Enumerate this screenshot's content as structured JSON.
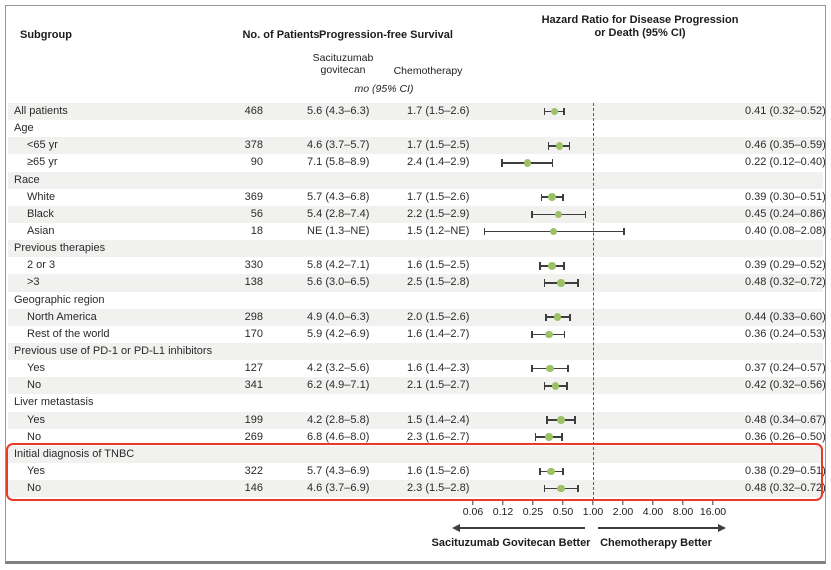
{
  "header": {
    "subgroup": "Subgroup",
    "patients": "No. of Patients",
    "pfs": "Progression-free Survival",
    "hr_line1": "Hazard Ratio for Disease Progression",
    "hr_line2": "or Death (95% CI)",
    "col_sg_line1": "Sacituzumab",
    "col_sg_line2": "govitecan",
    "col_chemo": "Chemotherapy",
    "units": "mo (95% CI)"
  },
  "highlight": {
    "label": "Initial diagnosis of TNBC",
    "color": "#e8392b"
  },
  "colors": {
    "marker_green": "#9cc166",
    "bar_dark": "#3e3e3e",
    "stripe_gray": "#f1f1f0",
    "highlight_red": "#e8392b"
  },
  "chart_data": {
    "type": "scatter",
    "subtype": "forest-plot",
    "title": "Hazard Ratio for Disease Progression or Death (95% CI)",
    "x_scale": "log2",
    "reference_line": 1.0,
    "xlim": [
      0.06,
      16.0
    ],
    "grid": false,
    "ticks": [
      {
        "label": "0.06",
        "value": 0.0625
      },
      {
        "label": "0.12",
        "value": 0.125
      },
      {
        "label": "0.25",
        "value": 0.25
      },
      {
        "label": "0.50",
        "value": 0.5
      },
      {
        "label": "1.00",
        "value": 1.0
      },
      {
        "label": "2.00",
        "value": 2.0
      },
      {
        "label": "4.00",
        "value": 4.0
      },
      {
        "label": "8.00",
        "value": 8.0
      },
      {
        "label": "16.00",
        "value": 16.0
      }
    ],
    "left_direction_label": "Sacituzumab Govitecan Better",
    "right_direction_label": "Chemotherapy Better",
    "rows": [
      {
        "label": "All patients",
        "indent": false,
        "group": false,
        "n": "468",
        "sg": "5.6 (4.3–6.3)",
        "chemo": "1.7 (1.5–2.6)",
        "hr": 0.41,
        "lo": 0.32,
        "hi": 0.52,
        "hr_text": "0.41 (0.32–0.52)"
      },
      {
        "label": "Age",
        "indent": false,
        "group": true
      },
      {
        "label": "<65 yr",
        "indent": true,
        "group": false,
        "n": "378",
        "sg": "4.6 (3.7–5.7)",
        "chemo": "1.7 (1.5–2.5)",
        "hr": 0.46,
        "lo": 0.35,
        "hi": 0.59,
        "hr_text": "0.46 (0.35–0.59)"
      },
      {
        "label": "≥65 yr",
        "indent": true,
        "group": false,
        "n": "90",
        "sg": "7.1 (5.8–8.9)",
        "chemo": "2.4 (1.4–2.9)",
        "hr": 0.22,
        "lo": 0.12,
        "hi": 0.4,
        "hr_text": "0.22 (0.12–0.40)"
      },
      {
        "label": "Race",
        "indent": false,
        "group": true
      },
      {
        "label": "White",
        "indent": true,
        "group": false,
        "n": "369",
        "sg": "5.7 (4.3–6.8)",
        "chemo": "1.7 (1.5–2.6)",
        "hr": 0.39,
        "lo": 0.3,
        "hi": 0.51,
        "hr_text": "0.39 (0.30–0.51)"
      },
      {
        "label": "Black",
        "indent": true,
        "group": false,
        "n": "56",
        "sg": "5.4 (2.8–7.4)",
        "chemo": "2.2 (1.5–2.9)",
        "hr": 0.45,
        "lo": 0.24,
        "hi": 0.86,
        "hr_text": "0.45 (0.24–0.86)"
      },
      {
        "label": "Asian",
        "indent": true,
        "group": false,
        "n": "18",
        "sg": "NE (1.3–NE)",
        "chemo": "1.5 (1.2–NE)",
        "hr": 0.4,
        "lo": 0.08,
        "hi": 2.08,
        "hr_text": "0.40 (0.08–2.08)"
      },
      {
        "label": "Previous therapies",
        "indent": false,
        "group": true
      },
      {
        "label": "2 or 3",
        "indent": true,
        "group": false,
        "n": "330",
        "sg": "5.8 (4.2–7.1)",
        "chemo": "1.6 (1.5–2.5)",
        "hr": 0.39,
        "lo": 0.29,
        "hi": 0.52,
        "hr_text": "0.39 (0.29–0.52)"
      },
      {
        "label": ">3",
        "indent": true,
        "group": false,
        "n": "138",
        "sg": "5.6 (3.0–6.5)",
        "chemo": "2.5 (1.5–2.8)",
        "hr": 0.48,
        "lo": 0.32,
        "hi": 0.72,
        "hr_text": "0.48 (0.32–0.72)"
      },
      {
        "label": "Geographic region",
        "indent": false,
        "group": true
      },
      {
        "label": "North America",
        "indent": true,
        "group": false,
        "n": "298",
        "sg": "4.9 (4.0–6.3)",
        "chemo": "2.0 (1.5–2.6)",
        "hr": 0.44,
        "lo": 0.33,
        "hi": 0.6,
        "hr_text": "0.44 (0.33–0.60)"
      },
      {
        "label": "Rest of the world",
        "indent": true,
        "group": false,
        "n": "170",
        "sg": "5.9 (4.2–6.9)",
        "chemo": "1.6 (1.4–2.7)",
        "hr": 0.36,
        "lo": 0.24,
        "hi": 0.53,
        "hr_text": "0.36 (0.24–0.53)"
      },
      {
        "label": "Previous use of PD-1 or PD-L1 inhibitors",
        "indent": false,
        "group": true
      },
      {
        "label": "Yes",
        "indent": true,
        "group": false,
        "n": "127",
        "sg": "4.2 (3.2–5.6)",
        "chemo": "1.6 (1.4–2.3)",
        "hr": 0.37,
        "lo": 0.24,
        "hi": 0.57,
        "hr_text": "0.37 (0.24–0.57)"
      },
      {
        "label": "No",
        "indent": true,
        "group": false,
        "n": "341",
        "sg": "6.2 (4.9–7.1)",
        "chemo": "2.1 (1.5–2.7)",
        "hr": 0.42,
        "lo": 0.32,
        "hi": 0.56,
        "hr_text": "0.42 (0.32–0.56)"
      },
      {
        "label": "Liver metastasis",
        "indent": false,
        "group": true
      },
      {
        "label": "Yes",
        "indent": true,
        "group": false,
        "n": "199",
        "sg": "4.2 (2.8–5.8)",
        "chemo": "1.5 (1.4–2.4)",
        "hr": 0.48,
        "lo": 0.34,
        "hi": 0.67,
        "hr_text": "0.48 (0.34–0.67)"
      },
      {
        "label": "No",
        "indent": true,
        "group": false,
        "n": "269",
        "sg": "6.8 (4.6–8.0)",
        "chemo": "2.3 (1.6–2.7)",
        "hr": 0.36,
        "lo": 0.26,
        "hi": 0.5,
        "hr_text": "0.36 (0.26–0.50)"
      },
      {
        "label": "Initial diagnosis of TNBC",
        "indent": false,
        "group": true
      },
      {
        "label": "Yes",
        "indent": true,
        "group": false,
        "n": "322",
        "sg": "5.7 (4.3–6.9)",
        "chemo": "1.6 (1.5–2.6)",
        "hr": 0.38,
        "lo": 0.29,
        "hi": 0.51,
        "hr_text": "0.38 (0.29–0.51)"
      },
      {
        "label": "No",
        "indent": true,
        "group": false,
        "n": "146",
        "sg": "4.6 (3.7–6.9)",
        "chemo": "2.3 (1.5–2.8)",
        "hr": 0.48,
        "lo": 0.32,
        "hi": 0.72,
        "hr_text": "0.48 (0.32–0.72)"
      }
    ]
  }
}
